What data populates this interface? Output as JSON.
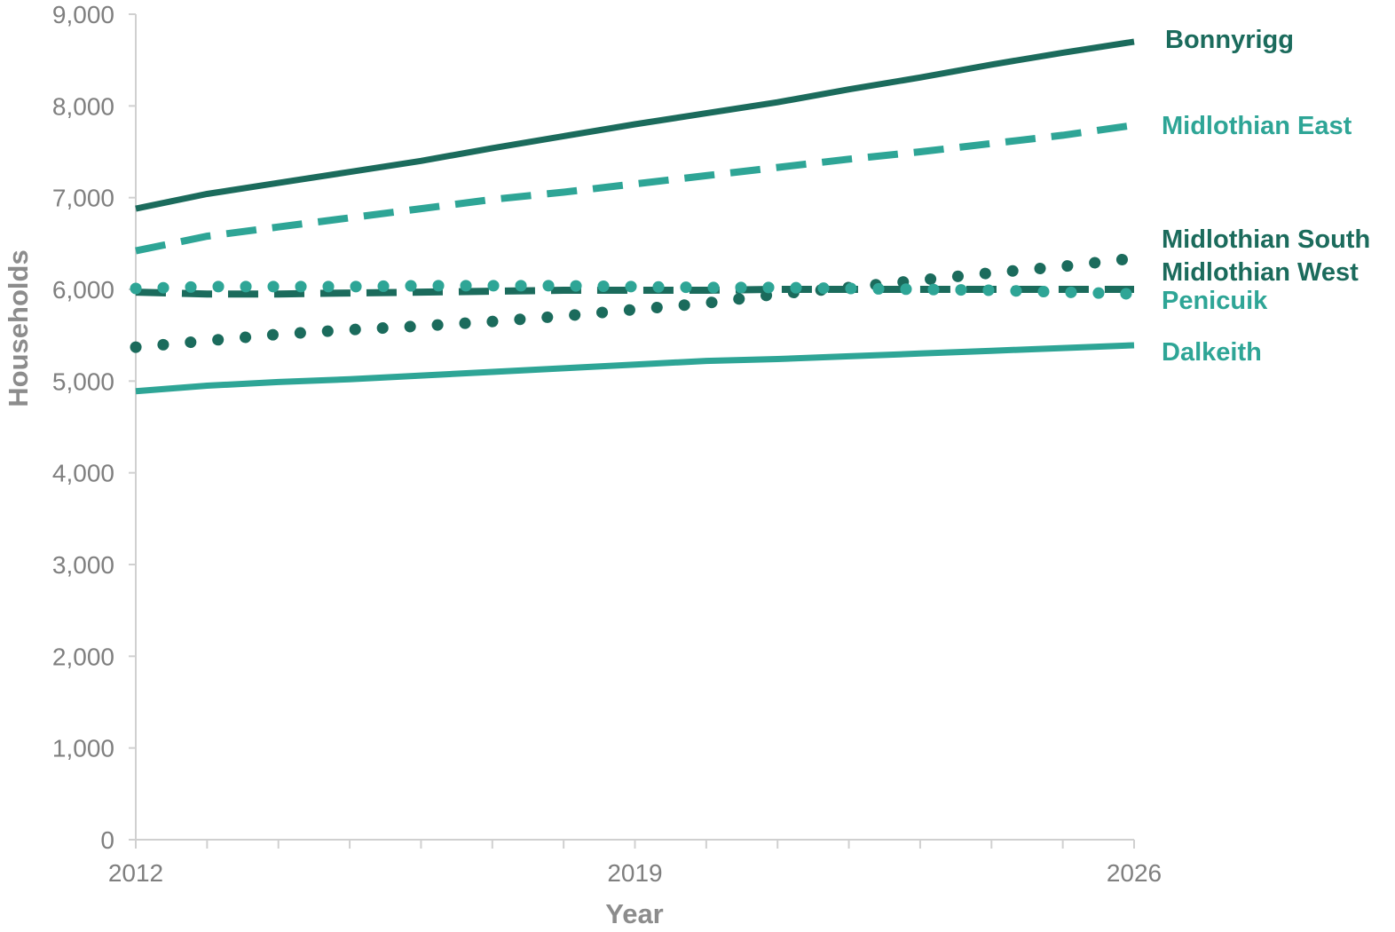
{
  "chart_data": {
    "type": "line",
    "xlabel": "Year",
    "ylabel": "Households",
    "xlim": [
      2012,
      2026
    ],
    "ylim": [
      0,
      9000
    ],
    "x_tick_labels": [
      "2012",
      "2019",
      "2026"
    ],
    "y_tick_labels": [
      "0",
      "1,000",
      "2,000",
      "3,000",
      "4,000",
      "5,000",
      "6,000",
      "7,000",
      "8,000",
      "9,000"
    ],
    "y_ticks": [
      0,
      1000,
      2000,
      3000,
      4000,
      5000,
      6000,
      7000,
      8000,
      9000
    ],
    "grid": false,
    "legend": "direct labels at line ends (right)",
    "x": [
      2012,
      2013,
      2014,
      2015,
      2016,
      2017,
      2018,
      2019,
      2020,
      2021,
      2022,
      2023,
      2024,
      2025,
      2026
    ],
    "series": [
      {
        "name": "Bonnyrigg",
        "color": "#1b6b5c",
        "style": "solid",
        "values": [
          6880,
          7040,
          7160,
          7280,
          7400,
          7540,
          7670,
          7800,
          7920,
          8040,
          8180,
          8310,
          8450,
          8580,
          8700
        ]
      },
      {
        "name": "Midlothian East",
        "color": "#2ea596",
        "style": "dashed",
        "values": [
          6420,
          6580,
          6680,
          6780,
          6880,
          6980,
          7060,
          7150,
          7240,
          7330,
          7420,
          7500,
          7590,
          7680,
          7790
        ]
      },
      {
        "name": "Midlothian South",
        "color": "#1b6b5c",
        "style": "dotted",
        "values": [
          5370,
          5440,
          5510,
          5560,
          5600,
          5650,
          5710,
          5780,
          5850,
          5950,
          6020,
          6100,
          6180,
          6250,
          6340
        ]
      },
      {
        "name": "Midlothian West",
        "color": "#1b6b5c",
        "style": "dashed",
        "values": [
          5970,
          5950,
          5950,
          5960,
          5970,
          5980,
          5990,
          5990,
          5990,
          6000,
          6000,
          6000,
          6000,
          6000,
          6000
        ]
      },
      {
        "name": "Penicuik",
        "color": "#2ea596",
        "style": "dotted",
        "values": [
          6010,
          6030,
          6030,
          6030,
          6040,
          6040,
          6040,
          6030,
          6020,
          6020,
          6010,
          6000,
          5990,
          5970,
          5950
        ]
      },
      {
        "name": "Dalkeith",
        "color": "#2ea596",
        "style": "solid",
        "values": [
          4890,
          4950,
          4990,
          5020,
          5060,
          5100,
          5140,
          5180,
          5220,
          5240,
          5270,
          5300,
          5330,
          5360,
          5390
        ]
      }
    ]
  }
}
